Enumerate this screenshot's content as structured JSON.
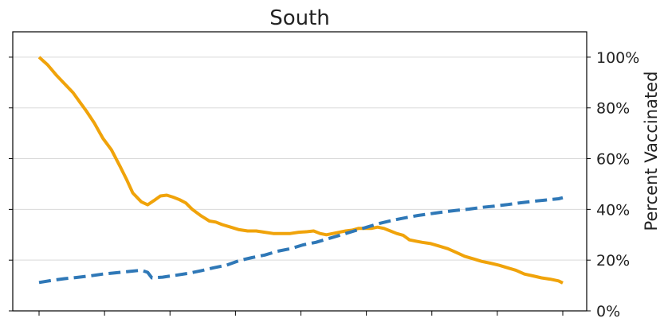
{
  "chart_data": {
    "type": "line",
    "title": "South",
    "xlabel": "",
    "y_right_label": "Percent Vaccinated",
    "y_right_ticks": [
      "0%",
      "20%",
      "40%",
      "60%",
      "80%",
      "100%"
    ],
    "y_right_tick_values": [
      0,
      20,
      40,
      60,
      80,
      100
    ],
    "ylim": [
      0,
      110
    ],
    "x_ticks_count": 9,
    "grid": "horizontal",
    "legend": "none",
    "series": [
      {
        "style": "solid",
        "color": "#f0a30a",
        "points": [
          [
            0,
            100
          ],
          [
            2,
            97
          ],
          [
            4,
            93
          ],
          [
            6,
            89.5
          ],
          [
            8,
            86
          ],
          [
            9.5,
            82.5
          ],
          [
            11,
            79
          ],
          [
            13,
            74
          ],
          [
            15,
            68
          ],
          [
            17,
            63.5
          ],
          [
            19,
            57
          ],
          [
            20.5,
            52
          ],
          [
            22,
            46.5
          ],
          [
            24,
            43
          ],
          [
            25.5,
            41.8
          ],
          [
            27,
            43.5
          ],
          [
            28.5,
            45.3
          ],
          [
            30,
            45.6
          ],
          [
            31.5,
            44.8
          ],
          [
            33,
            43.8
          ],
          [
            34.5,
            42.5
          ],
          [
            36,
            40
          ],
          [
            38,
            37.5
          ],
          [
            40,
            35.4
          ],
          [
            41.5,
            35
          ],
          [
            43,
            34
          ],
          [
            45,
            33
          ],
          [
            47,
            32
          ],
          [
            49,
            31.5
          ],
          [
            51,
            31.5
          ],
          [
            53,
            31
          ],
          [
            55,
            30.5
          ],
          [
            57,
            30.5
          ],
          [
            59,
            30.5
          ],
          [
            61,
            31
          ],
          [
            63,
            31.2
          ],
          [
            64.5,
            31.5
          ],
          [
            66,
            30.5
          ],
          [
            67.5,
            30
          ],
          [
            69,
            30.5
          ],
          [
            70.5,
            31
          ],
          [
            72,
            31.5
          ],
          [
            73.5,
            31.8
          ],
          [
            75,
            32.5
          ],
          [
            76.5,
            32.5
          ],
          [
            78,
            32.5
          ],
          [
            79.5,
            33
          ],
          [
            81,
            32.5
          ],
          [
            82.5,
            31.5
          ],
          [
            84,
            30.5
          ],
          [
            85.5,
            29.8
          ],
          [
            87,
            28
          ],
          [
            88.5,
            27.5
          ],
          [
            90,
            27
          ],
          [
            92,
            26.5
          ],
          [
            94,
            25.5
          ],
          [
            96,
            24.5
          ],
          [
            98,
            23
          ],
          [
            100,
            21.5
          ],
          [
            102,
            20.5
          ],
          [
            104,
            19.5
          ],
          [
            106,
            18.8
          ],
          [
            108,
            18
          ],
          [
            110,
            17
          ],
          [
            112,
            16
          ],
          [
            114,
            14.5
          ],
          [
            116,
            13.8
          ],
          [
            118,
            13
          ],
          [
            120,
            12.5
          ],
          [
            122,
            11.8
          ],
          [
            123,
            11
          ]
        ]
      },
      {
        "style": "dashed",
        "color": "#2f78b7",
        "points": [
          [
            0,
            11.2
          ],
          [
            3,
            12
          ],
          [
            6,
            12.7
          ],
          [
            9,
            13.2
          ],
          [
            12,
            13.8
          ],
          [
            15,
            14.5
          ],
          [
            18,
            15
          ],
          [
            21,
            15.5
          ],
          [
            24,
            16
          ],
          [
            25.5,
            15.2
          ],
          [
            26.5,
            13
          ],
          [
            29,
            13.3
          ],
          [
            32,
            14
          ],
          [
            35,
            14.8
          ],
          [
            38,
            15.8
          ],
          [
            41,
            17
          ],
          [
            44,
            18
          ],
          [
            47,
            19.8
          ],
          [
            50,
            21
          ],
          [
            53,
            22
          ],
          [
            56,
            23.5
          ],
          [
            59,
            24.5
          ],
          [
            62,
            26
          ],
          [
            65,
            27
          ],
          [
            68,
            28.5
          ],
          [
            71,
            30
          ],
          [
            74,
            31.5
          ],
          [
            77,
            33
          ],
          [
            80,
            34.5
          ],
          [
            83,
            35.7
          ],
          [
            86,
            36.7
          ],
          [
            89,
            37.6
          ],
          [
            92,
            38.3
          ],
          [
            95,
            39
          ],
          [
            98,
            39.6
          ],
          [
            101,
            40.1
          ],
          [
            104,
            40.8
          ],
          [
            107,
            41.3
          ],
          [
            110,
            41.9
          ],
          [
            113,
            42.6
          ],
          [
            116,
            43.2
          ],
          [
            119,
            43.7
          ],
          [
            122,
            44.2
          ],
          [
            123,
            44.6
          ]
        ]
      }
    ]
  }
}
